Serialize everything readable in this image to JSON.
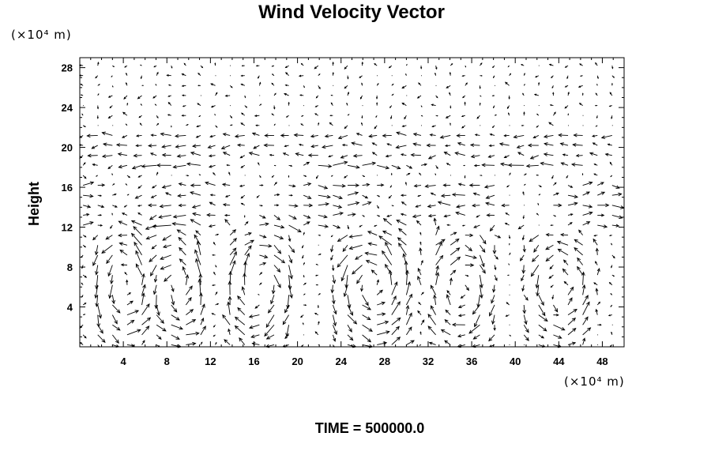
{
  "chart_data": {
    "type": "vector_field",
    "title": "Wind Velocity Vector",
    "y_unit": "(×10⁴ m)",
    "x_unit": "(×10⁴ m)",
    "ylabel": "Height",
    "xlabel": "",
    "footer": "TIME = 500000.0",
    "xlim": [
      0,
      50
    ],
    "ylim": [
      0,
      29
    ],
    "x_ticks": [
      "4",
      "8",
      "12",
      "16",
      "20",
      "24",
      "28",
      "32",
      "36",
      "40",
      "44",
      "48"
    ],
    "y_ticks": [
      "4",
      "8",
      "12",
      "16",
      "20",
      "24",
      "28"
    ],
    "x_tick_values": [
      4,
      8,
      12,
      16,
      20,
      24,
      28,
      32,
      36,
      40,
      44,
      48
    ],
    "y_tick_values": [
      4,
      8,
      12,
      16,
      20,
      24,
      28
    ],
    "grid": false,
    "field": {
      "x_start": 0.3,
      "x_step": 1.35,
      "x_count": 37,
      "y_start": 0.2,
      "y_step": 1.0,
      "y_count": 29,
      "upper_layer_wind": -0.55,
      "jet_heights": [
        19,
        20
      ],
      "cells": [
        {
          "cx": 4,
          "half_width": 2.5,
          "direction": 1,
          "strength": 1.5
        },
        {
          "cx": 9,
          "half_width": 2.5,
          "direction": 1,
          "strength": 1.6
        },
        {
          "cx": 16.5,
          "half_width": 3.0,
          "direction": -1,
          "strength": 1.5
        },
        {
          "cx": 27,
          "half_width": 3.5,
          "direction": 1,
          "strength": 1.6
        },
        {
          "cx": 35,
          "half_width": 3.0,
          "direction": -1,
          "strength": 1.4
        },
        {
          "cx": 44,
          "half_width": 3.0,
          "direction": 1,
          "strength": 1.3
        }
      ]
    }
  }
}
